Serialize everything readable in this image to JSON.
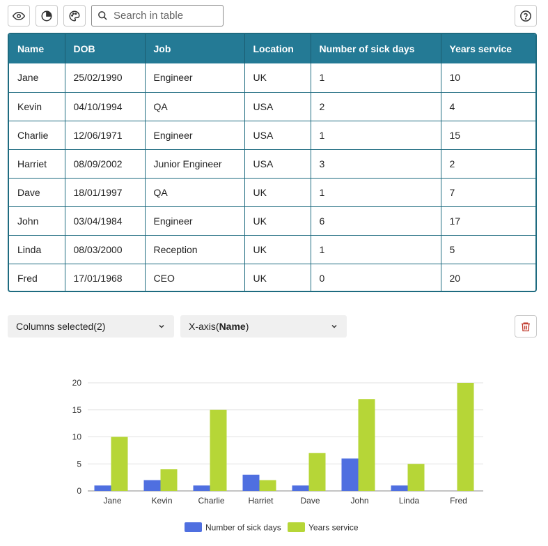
{
  "toolbar": {
    "view_icon": "eye-icon",
    "chart_icon": "pie-chart-icon",
    "theme_icon": "palette-icon",
    "search_placeholder": "Search in table",
    "search_value": "",
    "help_icon": "help-circle-icon"
  },
  "table": {
    "columns": [
      "Name",
      "DOB",
      "Job",
      "Location",
      "Number of sick days",
      "Years service"
    ],
    "rows": [
      [
        "Jane",
        "25/02/1990",
        "Engineer",
        "UK",
        "1",
        "10"
      ],
      [
        "Kevin",
        "04/10/1994",
        "QA",
        "USA",
        "2",
        "4"
      ],
      [
        "Charlie",
        "12/06/1971",
        "Engineer",
        "USA",
        "1",
        "15"
      ],
      [
        "Harriet",
        "08/09/2002",
        "Junior Engineer",
        "USA",
        "3",
        "2"
      ],
      [
        "Dave",
        "18/01/1997",
        "QA",
        "UK",
        "1",
        "7"
      ],
      [
        "John",
        "03/04/1984",
        "Engineer",
        "UK",
        "6",
        "17"
      ],
      [
        "Linda",
        "08/03/2000",
        "Reception",
        "UK",
        "1",
        "5"
      ],
      [
        "Fred",
        "17/01/1968",
        "CEO",
        "UK",
        "0",
        "20"
      ]
    ]
  },
  "controls": {
    "columns_label": "Columns selected(2)",
    "xaxis_prefix": "X-axis(",
    "xaxis_value": "Name",
    "xaxis_suffix": ")",
    "delete_icon": "trash-icon"
  },
  "colors": {
    "header_bg": "#247a95",
    "series_1": "#4f6fe0",
    "series_2": "#b6d637",
    "delete": "#c0392b"
  },
  "chart_data": {
    "type": "bar",
    "categories": [
      "Jane",
      "Kevin",
      "Charlie",
      "Harriet",
      "Dave",
      "John",
      "Linda",
      "Fred"
    ],
    "series": [
      {
        "name": "Number of sick days",
        "values": [
          1,
          2,
          1,
          3,
          1,
          6,
          1,
          0
        ],
        "color": "#4f6fe0"
      },
      {
        "name": "Years service",
        "values": [
          10,
          4,
          15,
          2,
          7,
          17,
          5,
          20
        ],
        "color": "#b6d637"
      }
    ],
    "yticks": [
      0,
      5,
      10,
      15,
      20
    ],
    "ylim": [
      0,
      20
    ],
    "grid": true,
    "legend": "bottom-center"
  }
}
